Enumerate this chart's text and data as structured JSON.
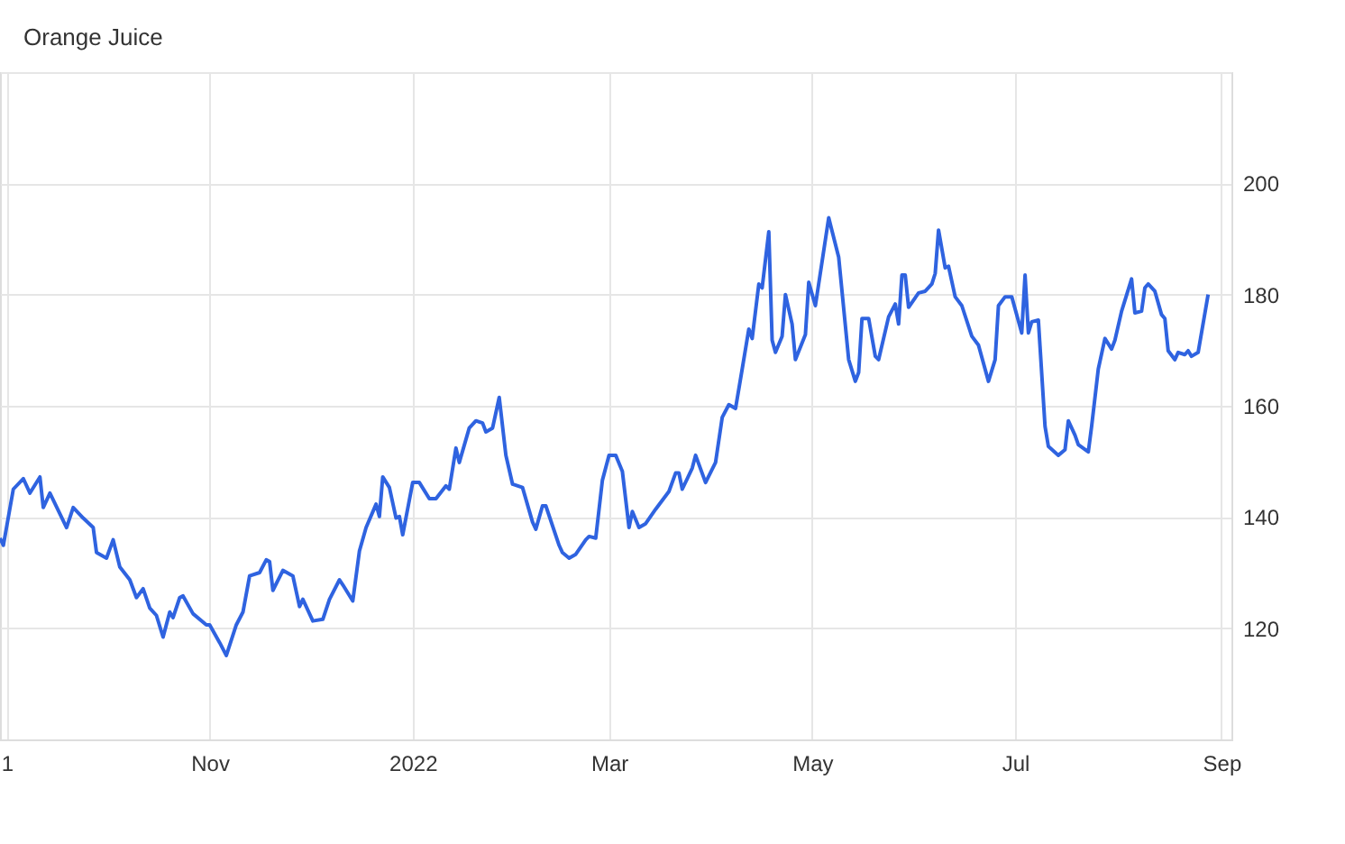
{
  "chart_data": {
    "type": "line",
    "title": "Orange Juice",
    "x": [
      "2021-08-30",
      "2021-08-31",
      "2021-09-03",
      "2021-09-06",
      "2021-09-08",
      "2021-09-11",
      "2021-09-12",
      "2021-09-14",
      "2021-09-19",
      "2021-09-21",
      "2021-09-24",
      "2021-09-27",
      "2021-09-28",
      "2021-10-01",
      "2021-10-03",
      "2021-10-05",
      "2021-10-08",
      "2021-10-10",
      "2021-10-12",
      "2021-10-14",
      "2021-10-16",
      "2021-10-18",
      "2021-10-20",
      "2021-10-21",
      "2021-10-23",
      "2021-10-24",
      "2021-10-27",
      "2021-10-31",
      "2021-11-01",
      "2021-11-04",
      "2021-11-06",
      "2021-11-09",
      "2021-11-11",
      "2021-11-13",
      "2021-11-16",
      "2021-11-18",
      "2021-11-19",
      "2021-11-20",
      "2021-11-23",
      "2021-11-26",
      "2021-11-28",
      "2021-11-29",
      "2021-12-02",
      "2021-12-05",
      "2021-12-07",
      "2021-12-10",
      "2021-12-11",
      "2021-12-14",
      "2021-12-16",
      "2021-12-18",
      "2021-12-21",
      "2021-12-22",
      "2021-12-23",
      "2021-12-25",
      "2021-12-27",
      "2021-12-28",
      "2021-12-29",
      "2022-01-01",
      "2022-01-03",
      "2022-01-06",
      "2022-01-08",
      "2022-01-11",
      "2022-01-12",
      "2022-01-14",
      "2022-01-15",
      "2022-01-18",
      "2022-01-20",
      "2022-01-22",
      "2022-01-23",
      "2022-01-25",
      "2022-01-27",
      "2022-01-29",
      "2022-01-31",
      "2022-02-03",
      "2022-02-06",
      "2022-02-07",
      "2022-02-09",
      "2022-02-10",
      "2022-02-14",
      "2022-02-15",
      "2022-02-17",
      "2022-02-19",
      "2022-02-22",
      "2022-02-23",
      "2022-02-25",
      "2022-02-27",
      "2022-03-01",
      "2022-03-03",
      "2022-03-05",
      "2022-03-07",
      "2022-03-08",
      "2022-03-10",
      "2022-03-12",
      "2022-03-15",
      "2022-03-19",
      "2022-03-21",
      "2022-03-22",
      "2022-03-23",
      "2022-03-26",
      "2022-03-27",
      "2022-03-30",
      "2022-04-02",
      "2022-04-04",
      "2022-04-06",
      "2022-04-08",
      "2022-04-10",
      "2022-04-12",
      "2022-04-13",
      "2022-04-15",
      "2022-04-16",
      "2022-04-18",
      "2022-04-19",
      "2022-04-20",
      "2022-04-22",
      "2022-04-23",
      "2022-04-25",
      "2022-04-26",
      "2022-04-29",
      "2022-04-30",
      "2022-05-02",
      "2022-05-06",
      "2022-05-09",
      "2022-05-12",
      "2022-05-14",
      "2022-05-15",
      "2022-05-16",
      "2022-05-18",
      "2022-05-20",
      "2022-05-21",
      "2022-05-24",
      "2022-05-26",
      "2022-05-27",
      "2022-05-28",
      "2022-05-29",
      "2022-05-30",
      "2022-06-02",
      "2022-06-04",
      "2022-06-06",
      "2022-06-07",
      "2022-06-08",
      "2022-06-10",
      "2022-06-11",
      "2022-06-13",
      "2022-06-15",
      "2022-06-18",
      "2022-06-20",
      "2022-06-23",
      "2022-06-25",
      "2022-06-26",
      "2022-06-28",
      "2022-06-30",
      "2022-07-03",
      "2022-07-04",
      "2022-07-05",
      "2022-07-06",
      "2022-07-08",
      "2022-07-10",
      "2022-07-11",
      "2022-07-14",
      "2022-07-16",
      "2022-07-17",
      "2022-07-19",
      "2022-07-20",
      "2022-07-23",
      "2022-07-24",
      "2022-07-26",
      "2022-07-28",
      "2022-07-30",
      "2022-07-31",
      "2022-08-02",
      "2022-08-05",
      "2022-08-06",
      "2022-08-08",
      "2022-08-09",
      "2022-08-10",
      "2022-08-12",
      "2022-08-14",
      "2022-08-15",
      "2022-08-16",
      "2022-08-18",
      "2022-08-19",
      "2022-08-21",
      "2022-08-22",
      "2022-08-23",
      "2022-08-25",
      "2022-08-28"
    ],
    "series": [
      {
        "color": "#2f63e0",
        "values": [
          136.2,
          134.9,
          145,
          146.9,
          144.3,
          147.2,
          141.7,
          144.3,
          138.1,
          141.7,
          139.8,
          138.1,
          133.6,
          132.6,
          135.9,
          131,
          128.7,
          125.5,
          127.1,
          123.6,
          122.3,
          118.4,
          122.9,
          121.9,
          125.5,
          125.8,
          122.6,
          120.6,
          120.6,
          117.4,
          115.1,
          120.6,
          122.9,
          129.4,
          130,
          132.3,
          132,
          126.8,
          130.4,
          129.4,
          123.9,
          125.2,
          121.3,
          121.6,
          125.2,
          128.7,
          127.8,
          124.9,
          133.9,
          138.1,
          142.3,
          140.1,
          147.2,
          145.3,
          139.8,
          140.1,
          136.8,
          146.2,
          146.2,
          143.3,
          143.3,
          145.6,
          145,
          152.4,
          149.8,
          156,
          157.3,
          156.9,
          155.3,
          156,
          161.5,
          151.1,
          145.9,
          145.3,
          139.1,
          137.8,
          142,
          142,
          134.9,
          133.6,
          132.6,
          133.3,
          135.9,
          136.5,
          136.2,
          146.6,
          151.1,
          151.1,
          148.2,
          138.1,
          141,
          138.1,
          138.8,
          141.4,
          144.6,
          147.9,
          147.9,
          145,
          148.8,
          151.1,
          146.2,
          149.8,
          157.9,
          160.2,
          159.5,
          166.6,
          173.8,
          172.1,
          181.9,
          181.2,
          191.3,
          171.8,
          169.6,
          172.5,
          180,
          174.7,
          168.3,
          172.8,
          182.2,
          178,
          193.8,
          186.7,
          168.3,
          164.4,
          166,
          175.7,
          175.7,
          168.9,
          168.3,
          176,
          178.3,
          174.7,
          183.5,
          183.5,
          177.7,
          180.3,
          180.6,
          181.9,
          183.8,
          191.6,
          184.8,
          185.1,
          179.6,
          178,
          172.5,
          170.9,
          164.4,
          168.3,
          178,
          179.6,
          179.6,
          173.1,
          183.5,
          173.1,
          175.1,
          175.4,
          156.3,
          152.7,
          151.1,
          152.1,
          157.3,
          154.7,
          153,
          151.7,
          156.3,
          166.6,
          172.1,
          170.2,
          171.8,
          177,
          182.8,
          176.7,
          177,
          181.2,
          181.9,
          180.6,
          176.4,
          175.7,
          169.9,
          168.3,
          169.6,
          169.2,
          169.9,
          168.9,
          169.6,
          180
        ]
      }
    ],
    "xlim": [
      "2021-08-30",
      "2022-09-04"
    ],
    "xticks": [
      {
        "value": "2021-09-01",
        "label": "1"
      },
      {
        "value": "2021-11-01",
        "label": "Nov"
      },
      {
        "value": "2022-01-01",
        "label": "2022"
      },
      {
        "value": "2022-03-01",
        "label": "Mar"
      },
      {
        "value": "2022-05-01",
        "label": "May"
      },
      {
        "value": "2022-07-01",
        "label": "Jul"
      },
      {
        "value": "2022-09-01",
        "label": "Sep"
      }
    ],
    "ylim": [
      100,
      220
    ],
    "yticks": [
      120,
      140,
      160,
      180,
      200,
      {
        "value": 220,
        "label": null
      }
    ],
    "grid": true,
    "marker": "none",
    "line_style": "solid"
  }
}
